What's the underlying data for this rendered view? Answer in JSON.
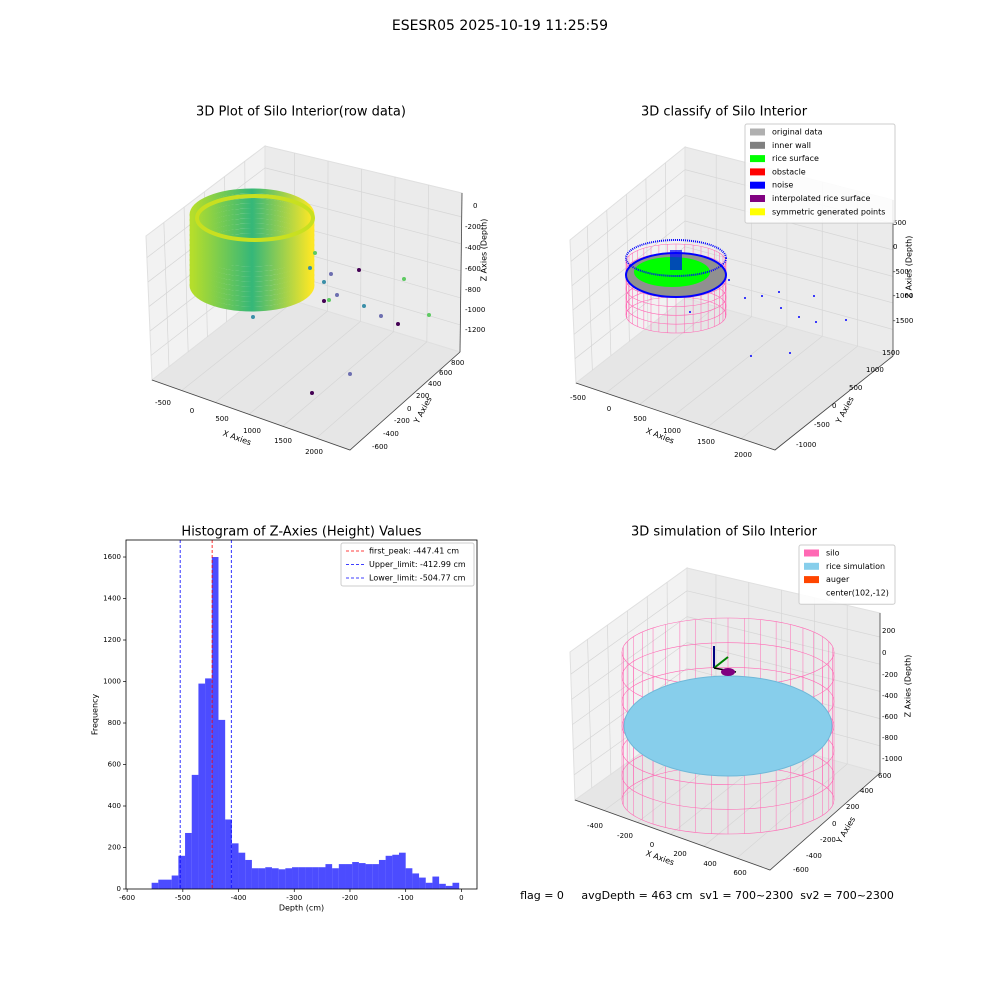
{
  "figure_title": "ESESR05 2025-10-19 11:25:59",
  "chart_data": [
    {
      "type": "scatter3d",
      "title": "3D Plot of Silo Interior(row data)",
      "xlabel": "X Axies",
      "ylabel": "Y Axies",
      "zlabel": "Z Axies (Depth)",
      "xticks": [
        -500,
        0,
        500,
        1000,
        1500,
        2000
      ],
      "yticks": [
        -600,
        -400,
        -200,
        0,
        200,
        400,
        600,
        800
      ],
      "zticks": [
        0,
        -200,
        -400,
        -600,
        -800,
        -1000,
        -1200
      ]
    },
    {
      "type": "scatter3d",
      "title": "3D classify of Silo Interior",
      "xlabel": "X Axies",
      "ylabel": "Y Axies",
      "zlabel": "Z Axies (Depth)",
      "xticks": [
        -500,
        0,
        500,
        1000,
        1500,
        2000
      ],
      "yticks": [
        -1000,
        -500,
        0,
        500,
        1000,
        1500
      ],
      "zticks": [
        500,
        0,
        -500,
        -1000,
        -1500
      ],
      "series": [
        {
          "name": "original data",
          "color": "#b0b0b0"
        },
        {
          "name": "inner wall",
          "color": "#808080"
        },
        {
          "name": "rice surface",
          "color": "#00ff00"
        },
        {
          "name": "obstacle",
          "color": "#ff0000"
        },
        {
          "name": "noise",
          "color": "#0000ff"
        },
        {
          "name": "interpolated rice surface",
          "color": "#800080"
        },
        {
          "name": "symmetric generated points",
          "color": "#ffff00"
        }
      ]
    },
    {
      "type": "histogram",
      "title": "Histogram of Z-Axies (Height) Values",
      "xlabel": "Depth (cm)",
      "ylabel": "Frequency",
      "color": "#0000ff",
      "bins": [
        -556,
        -544,
        -532,
        -520,
        -508,
        -496,
        -484,
        -472,
        -460,
        -448,
        -436,
        -424,
        -412,
        -400,
        -388,
        -376,
        -364,
        -352,
        -340,
        -328,
        -316,
        -304,
        -292,
        -280,
        -268,
        -256,
        -244,
        -232,
        -220,
        -208,
        -196,
        -184,
        -172,
        -160,
        -148,
        -136,
        -124,
        -112,
        -100,
        -88,
        -76,
        -64,
        -52,
        -40,
        -28,
        -16,
        -4
      ],
      "counts": [
        30,
        45,
        45,
        65,
        160,
        270,
        550,
        990,
        1015,
        1600,
        815,
        335,
        220,
        175,
        140,
        100,
        100,
        105,
        100,
        95,
        100,
        105,
        105,
        105,
        105,
        105,
        120,
        100,
        120,
        120,
        130,
        125,
        120,
        120,
        140,
        160,
        165,
        175,
        100,
        75,
        55,
        30,
        60,
        25,
        15,
        30
      ],
      "xlim": [
        -602,
        28
      ],
      "ylim": [
        0,
        1682
      ],
      "xticks": [
        -600,
        -500,
        -400,
        -300,
        -200,
        -100,
        0
      ],
      "yticks": [
        0,
        200,
        400,
        600,
        800,
        1000,
        1200,
        1400,
        1600
      ],
      "lines": [
        {
          "name": "first_peak: -447.41 cm",
          "value": -447.41,
          "color": "#ff0000"
        },
        {
          "name": "Upper_limit: -412.99 cm",
          "value": -412.99,
          "color": "#0000ff"
        },
        {
          "name": "Lower_limit: -504.77 cm",
          "value": -504.77,
          "color": "#0000ff"
        }
      ]
    },
    {
      "type": "surface3d",
      "title": "3D simulation of Silo Interior",
      "xlabel": "X Axies",
      "ylabel": "Y Axies",
      "zlabel": "Z Axies (Depth)",
      "xticks": [
        -400,
        -200,
        0,
        200,
        400,
        600
      ],
      "yticks": [
        -600,
        -400,
        -200,
        0,
        200,
        400,
        600
      ],
      "zticks": [
        200,
        0,
        -200,
        -400,
        -600,
        -800,
        -1000
      ],
      "series": [
        {
          "name": "silo",
          "color": "#ff69b4"
        },
        {
          "name": "rice simulation",
          "color": "#87ceeb"
        },
        {
          "name": "auger",
          "color": "#ff4500"
        },
        {
          "name": "center(102,-12)"
        }
      ],
      "annotation": "flag = 0     avgDepth = 463 cm  sv1 = 700~2300  sv2 = 700~2300"
    }
  ]
}
